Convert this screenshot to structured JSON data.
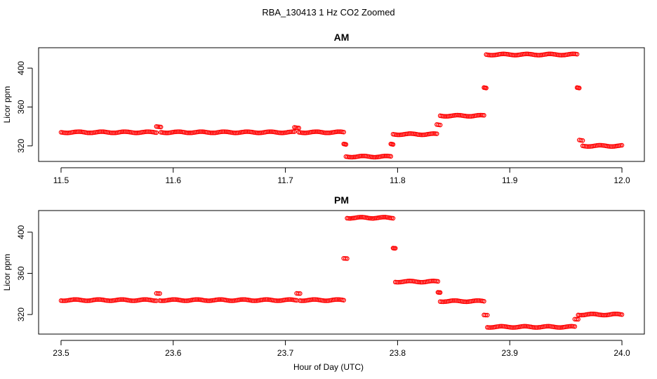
{
  "figure_title": "RBA_130413  1 Hz CO2 Zoomed",
  "xlabel": "Hour of Day (UTC)",
  "series_color": "#ff0000",
  "chart_data": [
    {
      "type": "scatter",
      "title": "AM",
      "ylabel": "Licor ppm",
      "xlim": [
        11.5,
        12.0
      ],
      "ylim": [
        304,
        421
      ],
      "xticks": [
        "11.5",
        "11.6",
        "11.7",
        "11.8",
        "11.9",
        "12.0"
      ],
      "yticks": [
        "320",
        "360",
        "400"
      ],
      "segments": [
        {
          "x0": 11.5,
          "x1": 11.585,
          "y": 334
        },
        {
          "x0": 11.585,
          "x1": 11.589,
          "y": 340
        },
        {
          "x0": 11.589,
          "x1": 11.708,
          "y": 334
        },
        {
          "x0": 11.708,
          "x1": 11.712,
          "y": 339
        },
        {
          "x0": 11.712,
          "x1": 11.752,
          "y": 334
        },
        {
          "x0": 11.752,
          "x1": 11.754,
          "y": 322
        },
        {
          "x0": 11.754,
          "x1": 11.794,
          "y": 309
        },
        {
          "x0": 11.794,
          "x1": 11.796,
          "y": 322
        },
        {
          "x0": 11.796,
          "x1": 11.835,
          "y": 332
        },
        {
          "x0": 11.835,
          "x1": 11.838,
          "y": 342
        },
        {
          "x0": 11.838,
          "x1": 11.877,
          "y": 351
        },
        {
          "x0": 11.877,
          "x1": 11.879,
          "y": 380
        },
        {
          "x0": 11.879,
          "x1": 11.96,
          "y": 414
        },
        {
          "x0": 11.96,
          "x1": 11.962,
          "y": 380
        },
        {
          "x0": 11.962,
          "x1": 11.965,
          "y": 326
        },
        {
          "x0": 11.965,
          "x1": 12.0,
          "y": 320
        }
      ]
    },
    {
      "type": "scatter",
      "title": "PM",
      "ylabel": "Licor ppm",
      "xlim": [
        23.5,
        24.0
      ],
      "ylim": [
        301,
        421
      ],
      "xticks": [
        "23.5",
        "23.6",
        "23.7",
        "23.8",
        "23.9",
        "24.0"
      ],
      "yticks": [
        "320",
        "360",
        "400"
      ],
      "segments": [
        {
          "x0": 23.5,
          "x1": 23.585,
          "y": 334
        },
        {
          "x0": 23.585,
          "x1": 23.588,
          "y": 341
        },
        {
          "x0": 23.588,
          "x1": 23.71,
          "y": 334
        },
        {
          "x0": 23.71,
          "x1": 23.713,
          "y": 341
        },
        {
          "x0": 23.713,
          "x1": 23.752,
          "y": 334
        },
        {
          "x0": 23.752,
          "x1": 23.755,
          "y": 375
        },
        {
          "x0": 23.755,
          "x1": 23.796,
          "y": 414
        },
        {
          "x0": 23.796,
          "x1": 23.798,
          "y": 385
        },
        {
          "x0": 23.798,
          "x1": 23.836,
          "y": 352
        },
        {
          "x0": 23.836,
          "x1": 23.838,
          "y": 342
        },
        {
          "x0": 23.838,
          "x1": 23.877,
          "y": 333
        },
        {
          "x0": 23.877,
          "x1": 23.88,
          "y": 320
        },
        {
          "x0": 23.88,
          "x1": 23.958,
          "y": 308
        },
        {
          "x0": 23.958,
          "x1": 23.961,
          "y": 316
        },
        {
          "x0": 23.961,
          "x1": 24.0,
          "y": 320
        }
      ]
    }
  ]
}
